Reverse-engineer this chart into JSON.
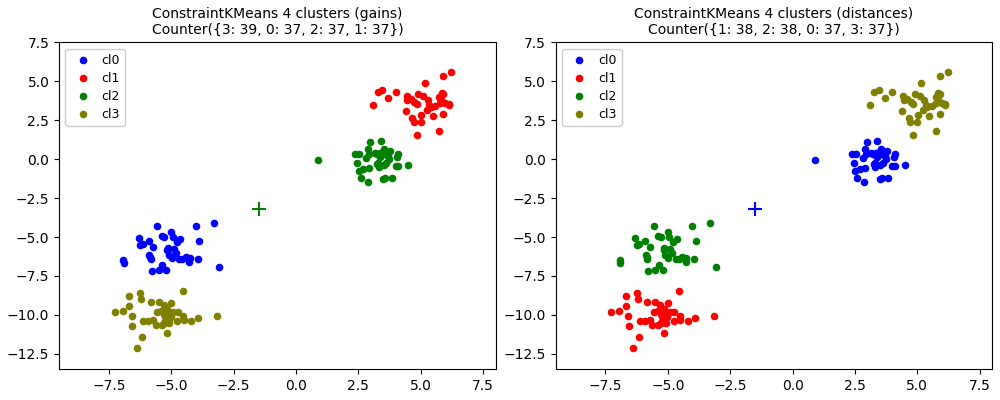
{
  "title1": "ConstraintKMeans 4 clusters (gains)\nCounter({3: 39, 0: 37, 2: 37, 1: 37})",
  "title2": "ConstraintKMeans 4 clusters (distances)\nCounter({1: 38, 2: 38, 0: 37, 3: 37})",
  "colors": [
    "blue",
    "red",
    "green",
    "olive"
  ],
  "legend_labels": [
    "cl0",
    "cl1",
    "cl2",
    "cl3"
  ],
  "xlim": [
    -9.5,
    8.0
  ],
  "ylim": [
    -13.5,
    7.5
  ],
  "xticks": [
    -7.5,
    -5.0,
    -2.5,
    0.0,
    2.5,
    5.0,
    7.5
  ],
  "marker_size": 30,
  "title_fontsize": 10
}
